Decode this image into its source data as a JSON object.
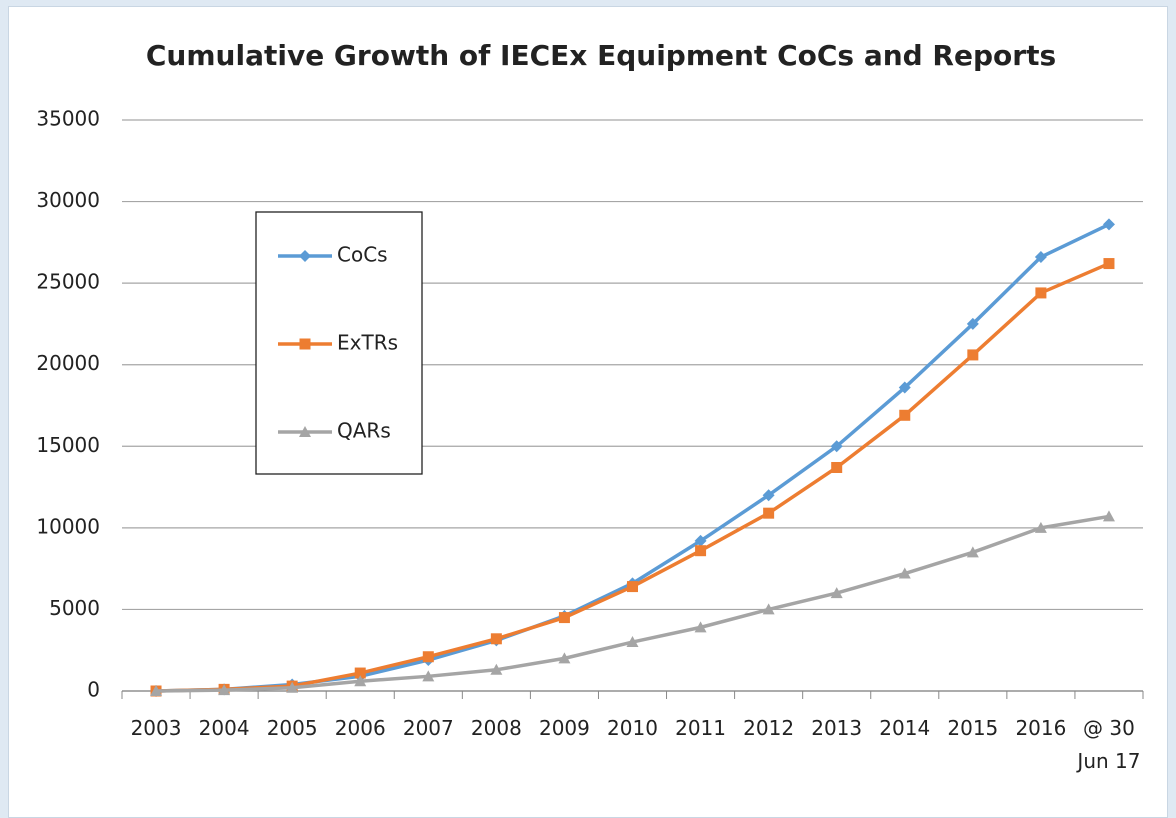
{
  "chart_data": {
    "type": "line",
    "title": "Cumulative Growth of IECEx Equipment CoCs and Reports",
    "categories": [
      "2003",
      "2004",
      "2005",
      "2006",
      "2007",
      "2008",
      "2009",
      "2010",
      "2011",
      "2012",
      "2013",
      "2014",
      "2015",
      "2016",
      "@ 30 Jun 17"
    ],
    "series": [
      {
        "name": "CoCs",
        "color": "#5b9bd5",
        "marker": "diamond",
        "values": [
          0,
          100,
          400,
          900,
          1900,
          3100,
          4600,
          6600,
          9200,
          12000,
          15000,
          18600,
          22500,
          26600,
          28600
        ]
      },
      {
        "name": "ExTRs",
        "color": "#ed7d31",
        "marker": "square",
        "values": [
          0,
          100,
          300,
          1100,
          2100,
          3200,
          4500,
          6400,
          8600,
          10900,
          13700,
          16900,
          20600,
          24400,
          26200
        ]
      },
      {
        "name": "QARs",
        "color": "#a5a5a5",
        "marker": "triangle",
        "values": [
          0,
          50,
          200,
          600,
          900,
          1300,
          2000,
          3000,
          3900,
          5000,
          6000,
          7200,
          8500,
          10000,
          10700
        ]
      }
    ],
    "ylim": [
      0,
      35000
    ],
    "yticks": [
      0,
      5000,
      10000,
      15000,
      20000,
      25000,
      30000,
      35000
    ],
    "grid": true
  }
}
